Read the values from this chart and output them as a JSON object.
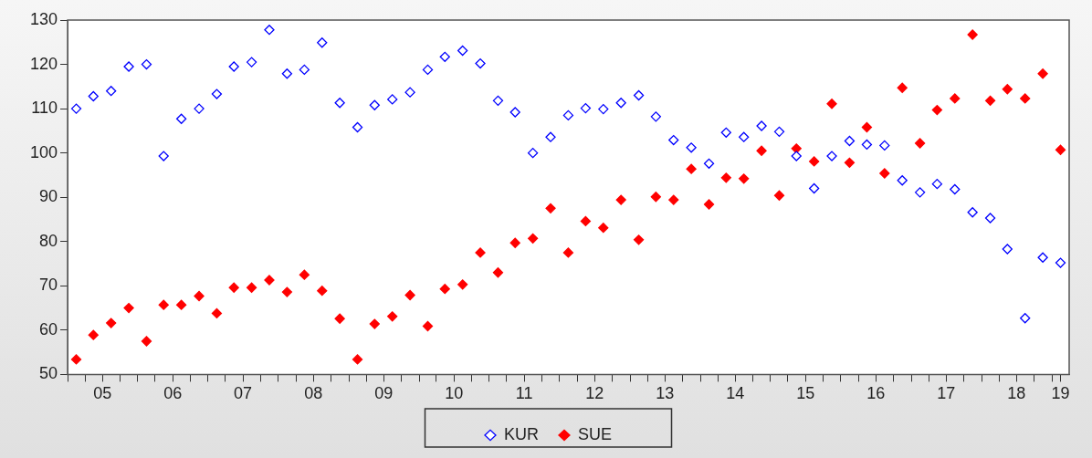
{
  "chart_data": {
    "type": "scatter",
    "x": [
      "2005-02-15",
      "2005-05-15",
      "2005-08-15",
      "2005-11-15",
      "2006-02-15",
      "2006-05-15",
      "2006-08-15",
      "2006-11-15",
      "2007-02-15",
      "2007-05-15",
      "2007-08-15",
      "2007-11-15",
      "2008-02-15",
      "2008-05-15",
      "2008-08-15",
      "2008-11-15",
      "2009-02-15",
      "2009-05-15",
      "2009-08-15",
      "2009-11-15",
      "2010-02-15",
      "2010-05-15",
      "2010-08-15",
      "2010-11-15",
      "2011-02-15",
      "2011-05-15",
      "2011-08-15",
      "2011-11-15",
      "2012-02-15",
      "2012-05-15",
      "2012-08-15",
      "2012-11-15",
      "2013-02-15",
      "2013-05-15",
      "2013-08-15",
      "2013-11-15",
      "2014-02-15",
      "2014-05-15",
      "2014-08-15",
      "2014-11-15",
      "2015-02-15",
      "2015-05-15",
      "2015-08-15",
      "2015-11-15",
      "2016-02-15",
      "2016-05-15",
      "2016-08-15",
      "2016-11-15",
      "2017-02-15",
      "2017-05-15",
      "2017-08-15",
      "2017-11-15",
      "2018-02-15",
      "2018-05-15",
      "2018-08-15",
      "2018-11-15",
      "2019-02-15"
    ],
    "series": [
      {
        "name": "KUR",
        "color": "#0000ff",
        "values": [
          110,
          112.8,
          114,
          119.5,
          120,
          99.3,
          107.7,
          110,
          113.3,
          119.5,
          120.5,
          127.8,
          117.9,
          118.8,
          124.9,
          111.3,
          105.8,
          110.8,
          112.1,
          113.7,
          118.8,
          121.7,
          123.1,
          120.2,
          111.8,
          109.2,
          100,
          103.6,
          108.5,
          110.1,
          109.9,
          111.3,
          113,
          108.2,
          102.9,
          101.2,
          97.6,
          104.6,
          103.6,
          106.1,
          104.8,
          99.3,
          92,
          99.3,
          102.7,
          101.9,
          101.7,
          93.8,
          91.1,
          93,
          91.8,
          86.6,
          85.3,
          78.3,
          62.7,
          76.4,
          75.2
        ]
      },
      {
        "name": "SUE",
        "color": "#ff0000",
        "values": [
          53.4,
          58.9,
          61.6,
          65,
          57.5,
          65.7,
          65.7,
          67.7,
          63.8,
          69.6,
          69.6,
          71.3,
          68.6,
          72.5,
          68.9,
          62.6,
          53.4,
          61.4,
          63.1,
          67.9,
          60.9,
          69.3,
          70.3,
          77.5,
          73,
          79.7,
          80.7,
          87.5,
          77.5,
          84.6,
          83.1,
          89.4,
          80.4,
          90.1,
          89.4,
          96.4,
          88.4,
          94.4,
          94.2,
          100.5,
          90.4,
          101,
          98.1,
          111.1,
          97.8,
          105.8,
          95.4,
          114.7,
          102.2,
          109.7,
          112.3,
          126.7,
          111.8,
          114.4,
          112.3,
          117.9,
          100.7
        ]
      }
    ],
    "xlim": [
      "2005-01-01",
      "2019-04-01"
    ],
    "xticks": [
      {
        "value": "2005-01-01",
        "label": null
      },
      {
        "value": "2005-04-01",
        "label": null
      },
      {
        "value": "2005-07-01",
        "label": "05"
      },
      {
        "value": "2005-10-01",
        "label": null
      },
      {
        "value": "2006-01-01",
        "label": null
      },
      {
        "value": "2006-04-01",
        "label": null
      },
      {
        "value": "2006-07-01",
        "label": "06"
      },
      {
        "value": "2006-10-01",
        "label": null
      },
      {
        "value": "2007-01-01",
        "label": null
      },
      {
        "value": "2007-04-01",
        "label": null
      },
      {
        "value": "2007-07-01",
        "label": "07"
      },
      {
        "value": "2007-10-01",
        "label": null
      },
      {
        "value": "2008-01-01",
        "label": null
      },
      {
        "value": "2008-04-01",
        "label": null
      },
      {
        "value": "2008-07-01",
        "label": "08"
      },
      {
        "value": "2008-10-01",
        "label": null
      },
      {
        "value": "2009-01-01",
        "label": null
      },
      {
        "value": "2009-04-01",
        "label": null
      },
      {
        "value": "2009-07-01",
        "label": "09"
      },
      {
        "value": "2009-10-01",
        "label": null
      },
      {
        "value": "2010-01-01",
        "label": null
      },
      {
        "value": "2010-04-01",
        "label": null
      },
      {
        "value": "2010-07-01",
        "label": "10"
      },
      {
        "value": "2010-10-01",
        "label": null
      },
      {
        "value": "2011-01-01",
        "label": null
      },
      {
        "value": "2011-04-01",
        "label": null
      },
      {
        "value": "2011-07-01",
        "label": "11"
      },
      {
        "value": "2011-10-01",
        "label": null
      },
      {
        "value": "2012-01-01",
        "label": null
      },
      {
        "value": "2012-04-01",
        "label": null
      },
      {
        "value": "2012-07-01",
        "label": "12"
      },
      {
        "value": "2012-10-01",
        "label": null
      },
      {
        "value": "2013-01-01",
        "label": null
      },
      {
        "value": "2013-04-01",
        "label": null
      },
      {
        "value": "2013-07-01",
        "label": "13"
      },
      {
        "value": "2013-10-01",
        "label": null
      },
      {
        "value": "2014-01-01",
        "label": null
      },
      {
        "value": "2014-04-01",
        "label": null
      },
      {
        "value": "2014-07-01",
        "label": "14"
      },
      {
        "value": "2014-10-01",
        "label": null
      },
      {
        "value": "2015-01-01",
        "label": null
      },
      {
        "value": "2015-04-01",
        "label": null
      },
      {
        "value": "2015-07-01",
        "label": "15"
      },
      {
        "value": "2015-10-01",
        "label": null
      },
      {
        "value": "2016-01-01",
        "label": null
      },
      {
        "value": "2016-04-01",
        "label": null
      },
      {
        "value": "2016-07-01",
        "label": "16"
      },
      {
        "value": "2016-10-01",
        "label": null
      },
      {
        "value": "2017-01-01",
        "label": null
      },
      {
        "value": "2017-04-01",
        "label": null
      },
      {
        "value": "2017-07-01",
        "label": "17"
      },
      {
        "value": "2017-10-01",
        "label": null
      },
      {
        "value": "2018-01-01",
        "label": null
      },
      {
        "value": "2018-04-01",
        "label": null
      },
      {
        "value": "2018-07-01",
        "label": "18"
      },
      {
        "value": "2018-10-01",
        "label": null
      },
      {
        "value": "2019-01-01",
        "label": null
      },
      {
        "value": "2019-02-15",
        "label": "19"
      }
    ],
    "ylim": [
      50,
      130
    ],
    "yticks": [
      50,
      60,
      70,
      80,
      90,
      100,
      110,
      120,
      130
    ],
    "grid": false,
    "legend": "bottom",
    "marker": "diamond"
  }
}
